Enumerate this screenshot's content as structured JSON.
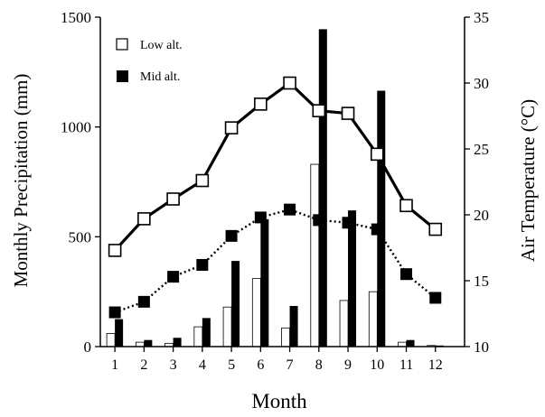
{
  "chart_data": {
    "type": "bar",
    "xlabel": "Month",
    "ylabel_left": "Monthly Precipitation (mm)",
    "ylabel_right": "Air Temperature (°C)",
    "categories": [
      "1",
      "2",
      "3",
      "4",
      "5",
      "6",
      "7",
      "8",
      "9",
      "10",
      "11",
      "12"
    ],
    "precip_axis": {
      "ylim": [
        0,
        1500
      ],
      "ticks": [
        0,
        500,
        1000,
        1500
      ]
    },
    "temp_axis": {
      "ylim": [
        10,
        35
      ],
      "ticks": [
        10,
        15,
        20,
        25,
        30,
        35
      ]
    },
    "legend": {
      "position": "top-left",
      "items": [
        {
          "label": "Low alt.",
          "marker": "open-square"
        },
        {
          "label": "Mid alt.",
          "marker": "filled-square"
        }
      ]
    },
    "precipitation_series": [
      {
        "name": "Low alt.",
        "style": "open-bar",
        "values": [
          60,
          20,
          15,
          90,
          180,
          310,
          85,
          830,
          210,
          250,
          20,
          5
        ]
      },
      {
        "name": "Mid alt.",
        "style": "filled-bar",
        "values": [
          125,
          30,
          40,
          130,
          390,
          580,
          185,
          1445,
          620,
          1165,
          30,
          5
        ]
      }
    ],
    "temperature_series": [
      {
        "name": "Low alt.",
        "style": "solid-line-open-square",
        "values": [
          17.3,
          19.7,
          21.2,
          22.6,
          26.6,
          28.4,
          30.0,
          27.9,
          27.7,
          24.6,
          20.7,
          18.9
        ]
      },
      {
        "name": "Mid alt.",
        "style": "dotted-line-filled-square",
        "values": [
          12.6,
          13.4,
          15.3,
          16.2,
          18.4,
          19.8,
          20.4,
          19.6,
          19.4,
          18.9,
          15.5,
          13.7
        ]
      }
    ],
    "colors": {
      "filled": "#000000",
      "open": "#ffffff",
      "stroke": "#000000"
    },
    "grid": false
  }
}
